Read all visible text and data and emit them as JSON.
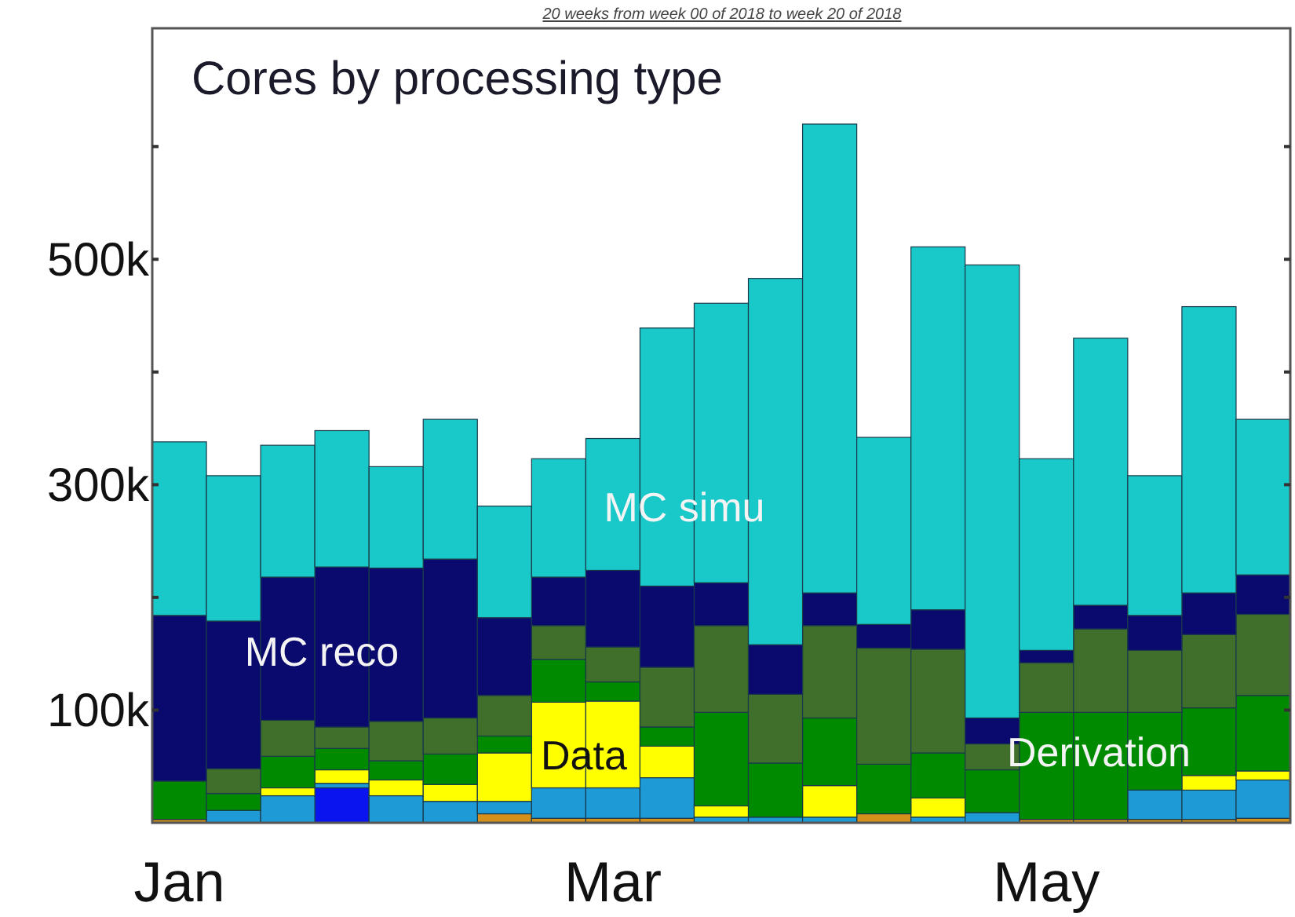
{
  "chart_data": {
    "type": "bar",
    "title": "Cores by processing type",
    "subtitle": "20 weeks from week 00 of 2018 to week 20 of 2018",
    "categories": [
      "Jan",
      null,
      null,
      null,
      null,
      null,
      null,
      null,
      "Mar",
      null,
      null,
      null,
      null,
      null,
      null,
      null,
      "May",
      null,
      null,
      null,
      null
    ],
    "stacked": true,
    "grid": false,
    "ylim": [
      0,
      705000
    ],
    "yticks": [
      {
        "value": 100000,
        "label": "100k"
      },
      {
        "value": 200000,
        "label": null
      },
      {
        "value": 300000,
        "label": "300k"
      },
      {
        "value": 400000,
        "label": null
      },
      {
        "value": 500000,
        "label": "500k"
      },
      {
        "value": 600000,
        "label": null
      }
    ],
    "series": [
      {
        "color": "#d4901a",
        "values": [
          3000,
          0,
          0,
          0,
          0,
          0,
          8000,
          4000,
          4000,
          4000,
          0,
          0,
          0,
          8000,
          0,
          0,
          3000,
          3000,
          3000,
          3000,
          4000
        ]
      },
      {
        "color": "#0a14ee",
        "values": [
          0,
          0,
          0,
          31000,
          0,
          0,
          0,
          0,
          0,
          0,
          0,
          0,
          0,
          0,
          0,
          0,
          0,
          0,
          0,
          0,
          0
        ]
      },
      {
        "color": "#1e9ad6",
        "values": [
          0,
          11000,
          24000,
          4000,
          24000,
          19000,
          11000,
          27000,
          27000,
          36000,
          5000,
          5000,
          5000,
          0,
          5000,
          9000,
          0,
          0,
          26000,
          26000,
          34000
        ]
      },
      {
        "name": "Data",
        "color": "#ffff00",
        "values": [
          0,
          0,
          7000,
          12000,
          14000,
          15000,
          43000,
          76000,
          77000,
          28000,
          10000,
          0,
          28000,
          0,
          17000,
          0,
          0,
          0,
          0,
          13000,
          8000
        ]
      },
      {
        "name": "Derivation",
        "color": "#008a00",
        "values": [
          34000,
          15000,
          28000,
          19000,
          17000,
          27000,
          15000,
          38000,
          17000,
          17000,
          83000,
          48000,
          60000,
          44000,
          40000,
          38000,
          95000,
          95000,
          69000,
          60000,
          67000
        ]
      },
      {
        "color": "#3f6f2a",
        "values": [
          0,
          22000,
          32000,
          19000,
          35000,
          32000,
          36000,
          30000,
          31000,
          53000,
          77000,
          61000,
          82000,
          103000,
          92000,
          23000,
          44000,
          74000,
          55000,
          65000,
          72000
        ]
      },
      {
        "name": "MC reco",
        "color": "#0a0a6e",
        "values": [
          147000,
          131000,
          127000,
          142000,
          136000,
          141000,
          69000,
          43000,
          68000,
          72000,
          38000,
          44000,
          29000,
          21000,
          35000,
          23000,
          11000,
          21000,
          31000,
          37000,
          35000
        ]
      },
      {
        "name": "MC simu",
        "color": "#19c8c8",
        "values": [
          154000,
          129000,
          117000,
          121000,
          90000,
          124000,
          99000,
          105000,
          117000,
          229000,
          248000,
          325000,
          416000,
          166000,
          322000,
          402000,
          170000,
          237000,
          124000,
          254000,
          138000
        ]
      }
    ]
  }
}
